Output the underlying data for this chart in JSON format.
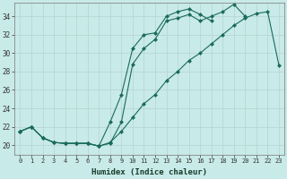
{
  "title": "",
  "xlabel": "Humidex (Indice chaleur)",
  "ylabel": "",
  "bg_color": "#c8eae8",
  "line_color": "#1a6b5a",
  "grid_color": "#b8d8d5",
  "xlim": [
    -0.5,
    23.5
  ],
  "ylim": [
    19.0,
    35.5
  ],
  "xticks": [
    0,
    1,
    2,
    3,
    4,
    5,
    6,
    7,
    8,
    9,
    10,
    11,
    12,
    13,
    14,
    15,
    16,
    17,
    18,
    19,
    20,
    21,
    22,
    23
  ],
  "yticks": [
    20,
    22,
    24,
    26,
    28,
    30,
    32,
    34
  ],
  "line1_x": [
    0,
    1,
    2,
    3,
    4,
    5,
    6,
    7,
    8,
    9,
    10,
    11,
    12,
    13,
    14,
    15,
    16,
    17,
    18,
    19,
    20,
    21,
    22,
    23
  ],
  "line1_y": [
    21.5,
    22.0,
    20.8,
    20.3,
    20.2,
    20.2,
    20.2,
    19.9,
    20.3,
    21.5,
    23.0,
    24.5,
    25.5,
    27.0,
    28.0,
    29.2,
    30.0,
    31.0,
    32.0,
    33.0,
    33.8,
    34.3,
    34.5,
    28.7
  ],
  "line2_x": [
    0,
    1,
    2,
    3,
    4,
    5,
    6,
    7,
    8,
    9,
    10,
    11,
    12,
    13,
    14,
    15,
    16,
    17,
    18,
    19,
    20,
    21,
    22,
    23
  ],
  "line2_y": [
    21.5,
    22.0,
    20.8,
    20.3,
    20.2,
    20.2,
    20.2,
    19.9,
    22.5,
    25.5,
    30.5,
    32.0,
    32.2,
    34.0,
    34.5,
    34.8,
    34.2,
    33.5,
    null,
    null,
    null,
    null,
    null,
    null
  ],
  "line3_x": [
    0,
    1,
    2,
    3,
    4,
    5,
    6,
    7,
    8,
    9,
    10,
    11,
    12,
    13,
    14,
    15,
    16,
    17,
    18,
    19,
    20,
    21,
    22,
    23
  ],
  "line3_y": [
    21.5,
    22.0,
    20.8,
    20.3,
    20.2,
    20.2,
    20.2,
    19.9,
    20.2,
    22.5,
    28.8,
    30.5,
    31.5,
    33.5,
    33.8,
    34.2,
    33.5,
    34.0,
    34.5,
    35.3,
    34.0,
    null,
    null,
    null
  ]
}
